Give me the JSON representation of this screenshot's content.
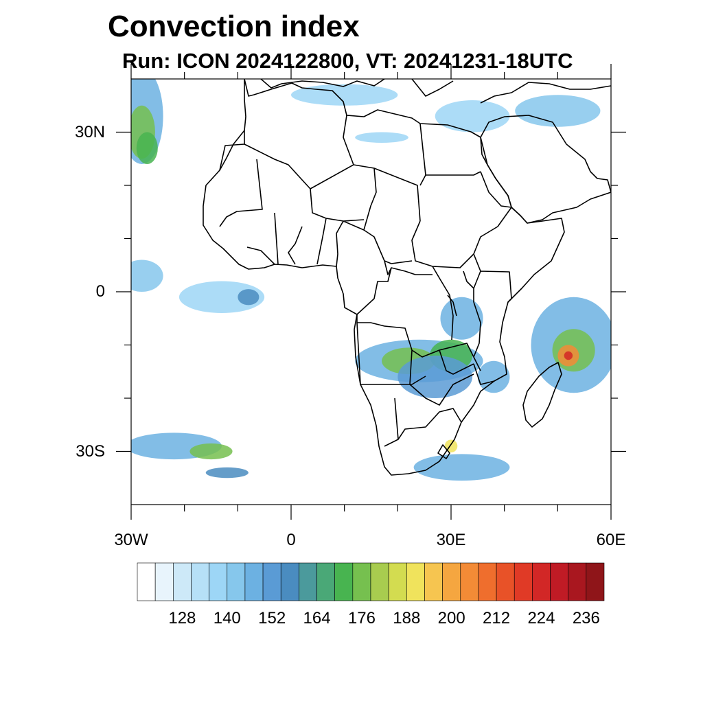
{
  "title": "Convection index",
  "subtitle": "Run: ICON 2024122800,  VT: 20241231-18UTC",
  "map": {
    "lon_range": [
      -30,
      60
    ],
    "lat_range": [
      -40,
      40
    ],
    "lon_ticks": [
      {
        "value": -30,
        "label": "30W"
      },
      {
        "value": 0,
        "label": "0"
      },
      {
        "value": 30,
        "label": "30E"
      },
      {
        "value": 60,
        "label": "60E"
      }
    ],
    "lat_ticks": [
      {
        "value": 30,
        "label": "30N"
      },
      {
        "value": 0,
        "label": "0"
      },
      {
        "value": -30,
        "label": "30S"
      }
    ],
    "minor_lon": [
      -20,
      -10,
      10,
      20,
      40,
      50
    ],
    "minor_lat": [
      20,
      10,
      -10,
      -20
    ]
  },
  "colorbar": {
    "colors": [
      "#ffffff",
      "#e8f4fc",
      "#cde9f8",
      "#b6e0f7",
      "#9dd6f6",
      "#86c7ec",
      "#6cb1e2",
      "#5a9bd5",
      "#4a8cc0",
      "#4b9a9c",
      "#4aa877",
      "#48b450",
      "#76c04f",
      "#a8cc4f",
      "#d3dc50",
      "#f0e35c",
      "#f6c550",
      "#f5a640",
      "#f38b36",
      "#ef6e2d",
      "#e85228",
      "#e03a26",
      "#d22726",
      "#c01b25",
      "#a9171f",
      "#8f1519"
    ],
    "labels": [
      "128",
      "140",
      "152",
      "164",
      "176",
      "188",
      "200",
      "212",
      "224",
      "236"
    ]
  },
  "field": {
    "blobs": [
      {
        "lon": -28,
        "lat": 33,
        "rx": 4,
        "ry": 9,
        "level": 6
      },
      {
        "lon": -28,
        "lat": 30,
        "rx": 2.5,
        "ry": 5,
        "level": 12
      },
      {
        "lon": -27,
        "lat": 27,
        "rx": 2,
        "ry": 3,
        "level": 11
      },
      {
        "lon": -28,
        "lat": 3,
        "rx": 4,
        "ry": 3,
        "level": 5
      },
      {
        "lon": -13,
        "lat": -1,
        "rx": 8,
        "ry": 3,
        "level": 4
      },
      {
        "lon": -8,
        "lat": -1,
        "rx": 2,
        "ry": 1.5,
        "level": 8
      },
      {
        "lon": 24,
        "lat": -13,
        "rx": 12,
        "ry": 4,
        "level": 6
      },
      {
        "lon": 22,
        "lat": -13,
        "rx": 5,
        "ry": 2.5,
        "level": 12
      },
      {
        "lon": 30,
        "lat": -12,
        "rx": 4,
        "ry": 3,
        "level": 11
      },
      {
        "lon": 27,
        "lat": -16,
        "rx": 7,
        "ry": 4,
        "level": 7
      },
      {
        "lon": 32,
        "lat": -5,
        "rx": 4,
        "ry": 4,
        "level": 6
      },
      {
        "lon": 38,
        "lat": -16,
        "rx": 3,
        "ry": 3,
        "level": 6
      },
      {
        "lon": 53,
        "lat": -10,
        "rx": 8,
        "ry": 9,
        "level": 6
      },
      {
        "lon": 53,
        "lat": -11,
        "rx": 4,
        "ry": 4,
        "level": 12
      },
      {
        "lon": 52,
        "lat": -12,
        "rx": 2,
        "ry": 2,
        "level": 18
      },
      {
        "lon": 52,
        "lat": -12,
        "rx": 0.8,
        "ry": 0.8,
        "level": 22
      },
      {
        "lon": 32,
        "lat": -33,
        "rx": 9,
        "ry": 2.5,
        "level": 6
      },
      {
        "lon": 30,
        "lat": -29,
        "rx": 1.2,
        "ry": 1.2,
        "level": 15
      },
      {
        "lon": 34,
        "lat": 33,
        "rx": 7,
        "ry": 3,
        "level": 4
      },
      {
        "lon": 50,
        "lat": 34,
        "rx": 8,
        "ry": 3,
        "level": 5
      },
      {
        "lon": 10,
        "lat": 37,
        "rx": 10,
        "ry": 2,
        "level": 4
      },
      {
        "lon": 17,
        "lat": 29,
        "rx": 5,
        "ry": 1,
        "level": 4
      },
      {
        "lon": -22,
        "lat": -29,
        "rx": 9,
        "ry": 2.5,
        "level": 6
      },
      {
        "lon": -15,
        "lat": -30,
        "rx": 4,
        "ry": 1.5,
        "level": 12
      },
      {
        "lon": -12,
        "lat": -34,
        "rx": 4,
        "ry": 1,
        "level": 8
      }
    ]
  }
}
